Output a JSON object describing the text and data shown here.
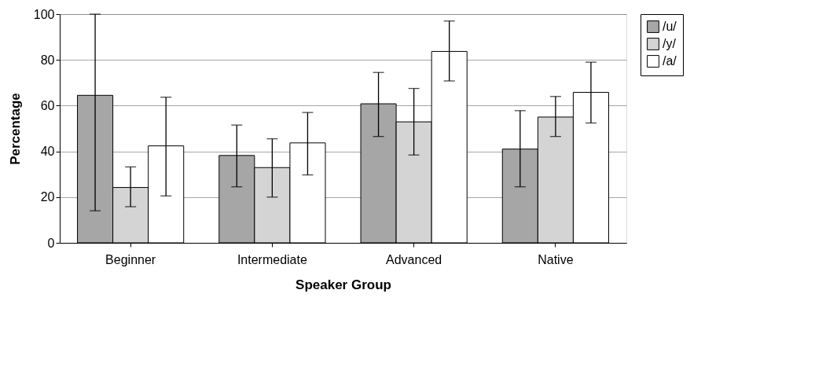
{
  "chart_data": {
    "type": "bar",
    "xlabel": "Speaker Group",
    "ylabel": "Percentage",
    "categories": [
      "Beginner",
      "Intermediate",
      "Advanced",
      "Native"
    ],
    "series": [
      {
        "name": "/u/",
        "color": "#a6a6a6",
        "values": [
          64.5,
          38.2,
          60.8,
          41
        ],
        "errors": [
          [
            14,
            100
          ],
          [
            24.5,
            51.5
          ],
          [
            46.5,
            74.5
          ],
          [
            24.5,
            57.8
          ]
        ]
      },
      {
        "name": "/y/",
        "color": "#d4d4d4",
        "values": [
          24.2,
          32.9,
          52.9,
          55
        ],
        "errors": [
          [
            15.8,
            33.2
          ],
          [
            20,
            45.5
          ],
          [
            38.4,
            67.5
          ],
          [
            46.5,
            64
          ]
        ]
      },
      {
        "name": "/a/",
        "color": "#ffffff",
        "values": [
          42.4,
          43.7,
          83.7,
          65.8
        ],
        "errors": [
          [
            20.5,
            63.7
          ],
          [
            29.7,
            57
          ],
          [
            70.8,
            97
          ],
          [
            52.4,
            79
          ]
        ]
      }
    ],
    "ylim": [
      0,
      100
    ],
    "yticks": [
      0,
      20,
      40,
      60,
      80,
      100
    ],
    "grid": "y",
    "legend": "right"
  }
}
